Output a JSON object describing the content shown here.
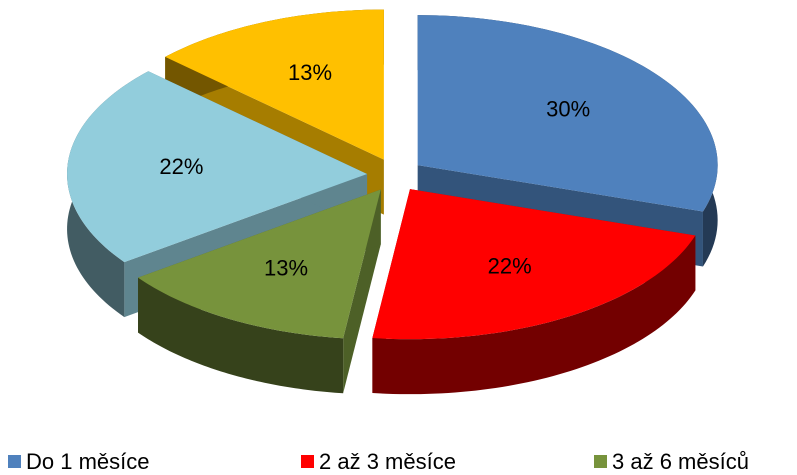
{
  "chart_data": {
    "type": "pie",
    "categories": [
      "Do 1 měsíce",
      "2 až 3 měsíce",
      "3 až 6 měsíců",
      null,
      null
    ],
    "values": [
      30,
      22,
      13,
      22,
      13
    ],
    "value_labels": [
      "30%",
      "22%",
      "13%",
      "22%",
      "13%"
    ],
    "colors": [
      "#4f81bd",
      "#ff0000",
      "#77933c",
      "#92cddc",
      "#ffc000"
    ],
    "legend": "bottom"
  }
}
